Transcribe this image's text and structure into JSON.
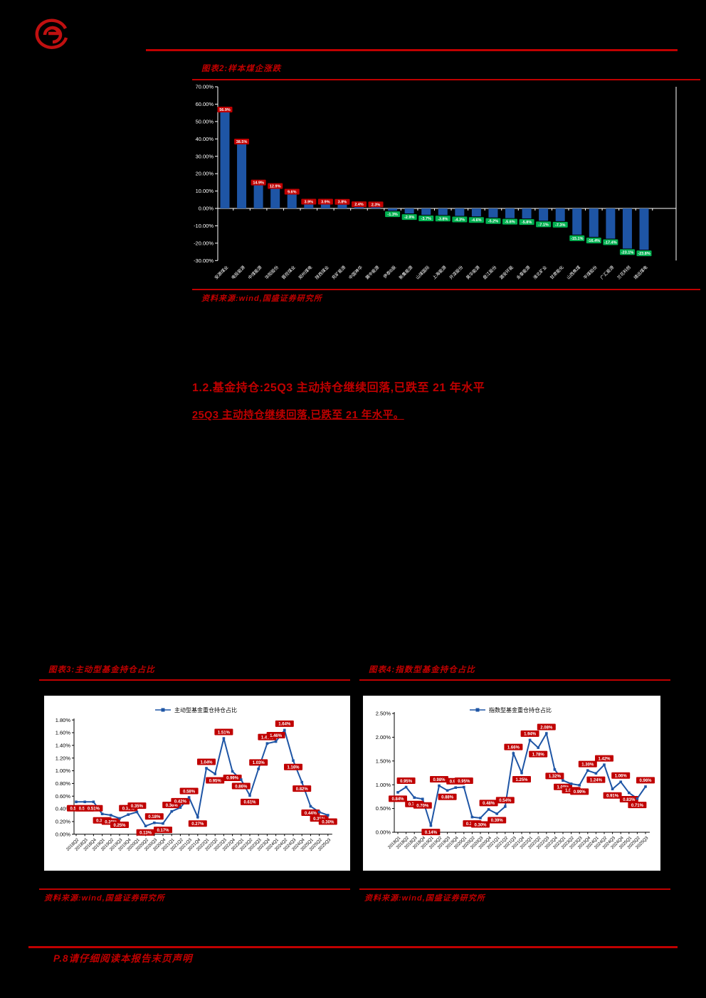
{
  "colors": {
    "accent_red": "#C00000",
    "bar_blue": "#1E55A5",
    "line_blue": "#1E55A5",
    "label_pos": "#C00000",
    "label_neg": "#00B050",
    "page_bg": "#000000",
    "panel_bg": "#FFFFFF",
    "axis_text_dark_bg": "#FFFFFF",
    "axis_text_light_bg": "#000000"
  },
  "logo": {
    "name": "guosheng-securities-logo"
  },
  "figure2": {
    "title": "图表2:样本煤企涨跌",
    "source": "资料来源:wind,国盛证券研究所"
  },
  "section": {
    "heading": "1.2.基金持仓:25Q3 主动持仓继续回落,已跌至 21 年水平",
    "subheading": "25Q3 主动持仓继续回落,已跌至 21 年水平。"
  },
  "figure3": {
    "title": "图表3:主动型基金持仓占比",
    "legend": "主动型基金重仓持仓占比",
    "source": "资料来源:wind,国盛证券研究所"
  },
  "figure4": {
    "title": "图表4:指数型基金持仓占比",
    "legend": "指数型基金重仓持仓占比",
    "source": "资料来源:wind,国盛证券研究所"
  },
  "footer": {
    "text": "P.8请仔细阅读本报告末页声明"
  },
  "chart_data": [
    {
      "id": "fig2",
      "type": "bar",
      "title": "样本煤企涨跌",
      "categories": [
        "安源煤业",
        "电投能源",
        "中煤能源",
        "华阳股份",
        "晋控煤业",
        "郑州煤电",
        "陕西煤业",
        "兖矿能源",
        "中国神华",
        "冀中能源",
        "伊泰B股",
        "新集能源",
        "山煤国际",
        "上海能源",
        "开滦股份",
        "昊华能源",
        "盘江股份",
        "潞安环能",
        "永泰能源",
        "淮北矿业",
        "甘肃能化",
        "山西焦煤",
        "平煤股份",
        "广汇能源",
        "兰花科创",
        "靖远煤电"
      ],
      "values": [
        56.9,
        38.5,
        14.9,
        12.9,
        9.6,
        3.9,
        3.9,
        3.8,
        2.4,
        2.3,
        -1.3,
        -2.9,
        -3.7,
        -3.8,
        -4.3,
        -4.6,
        -5.2,
        -5.6,
        -5.8,
        -7.1,
        -7.3,
        -15.1,
        -16.4,
        -17.4,
        -23.1,
        -23.8
      ],
      "data_labels": [
        "56.9%",
        "38.5%",
        "14.9%",
        "12.9%",
        "9.6%",
        "3.9%",
        "3.9%",
        "3.8%",
        "2.4%",
        "2.3%",
        "-1.3%",
        "-2.9%",
        "-3.7%",
        "-3.8%",
        "-4.3%",
        "-4.6%",
        "-5.2%",
        "-5.6%",
        "-5.8%",
        "-7.1%",
        "-7.3%",
        "-15.1%",
        "-16.4%",
        "-17.4%",
        "-23.1%",
        "-23.8%"
      ],
      "xlabel": "",
      "ylabel": "",
      "ylim": [
        -30,
        70
      ],
      "ytick_step": 10,
      "ytick_labels": [
        "70.00%",
        "60.00%",
        "50.00%",
        "40.00%",
        "30.00%",
        "20.00%",
        "10.00%",
        "0.00%",
        "-10.00%",
        "-20.00%",
        "-30.00%"
      ],
      "grid": false,
      "legend_position": "none"
    },
    {
      "id": "fig3",
      "type": "line",
      "title": "主动型基金持仓占比",
      "legend": "主动型基金重仓持仓占比",
      "legend_position": "top-center",
      "x": [
        "2018Q2",
        "2018Q3",
        "2018Q4",
        "2019Q1",
        "2019Q2",
        "2019Q3",
        "2019Q4",
        "2020Q1",
        "2020Q2",
        "2020Q3",
        "2020Q4",
        "2021Q1",
        "2021Q2",
        "2021Q3",
        "2021Q4",
        "2022Q1",
        "2022Q2",
        "2022Q3",
        "2022Q4",
        "2023Q1",
        "2023Q2",
        "2023Q3",
        "2023Q4",
        "2024Q1",
        "2024Q2",
        "2024Q3",
        "2024Q4",
        "2025Q1",
        "2025Q2",
        "2025Q3"
      ],
      "values": [
        0.51,
        0.51,
        0.51,
        0.32,
        0.3,
        0.25,
        0.31,
        0.35,
        0.13,
        0.18,
        0.17,
        0.36,
        0.42,
        0.58,
        0.27,
        1.04,
        0.95,
        1.51,
        0.99,
        0.86,
        0.61,
        1.03,
        1.43,
        1.46,
        1.64,
        1.16,
        0.82,
        0.44,
        0.35,
        0.3
      ],
      "ylim": [
        0,
        1.8
      ],
      "ytick_step": 0.2,
      "ytick_labels": [
        "1.80%",
        "1.60%",
        "1.40%",
        "1.20%",
        "1.00%",
        "0.80%",
        "0.60%",
        "0.40%",
        "0.20%",
        "0.00%"
      ],
      "grid": false
    },
    {
      "id": "fig4",
      "type": "line",
      "title": "指数型基金持仓占比",
      "legend": "指数型基金重仓持仓占比",
      "legend_position": "top-center",
      "x": [
        "2018Q1",
        "2018Q2",
        "2018Q3",
        "2018Q4",
        "2019Q1",
        "2019Q2",
        "2019Q3",
        "2019Q4",
        "2020Q1",
        "2020Q2",
        "2020Q3",
        "2020Q4",
        "2021Q1",
        "2021Q2",
        "2021Q3",
        "2021Q4",
        "2022Q1",
        "2022Q2",
        "2022Q3",
        "2022Q4",
        "2023Q1",
        "2023Q2",
        "2023Q3",
        "2023Q4",
        "2024Q1",
        "2024Q2",
        "2024Q3",
        "2024Q4",
        "2025Q1",
        "2025Q2",
        "2025Q3"
      ],
      "values": [
        0.84,
        0.95,
        0.73,
        0.7,
        0.14,
        0.98,
        0.88,
        0.94,
        0.95,
        0.32,
        0.3,
        0.48,
        0.39,
        0.54,
        1.66,
        1.25,
        1.94,
        1.78,
        2.08,
        1.32,
        1.09,
        1.02,
        0.99,
        1.3,
        1.24,
        1.42,
        0.91,
        1.06,
        0.83,
        0.71,
        0.96
      ],
      "ylim": [
        0,
        2.5
      ],
      "ytick_step": 0.5,
      "ytick_labels": [
        "2.50%",
        "2.00%",
        "1.50%",
        "1.00%",
        "0.50%",
        "0.00%"
      ],
      "grid": false
    }
  ]
}
